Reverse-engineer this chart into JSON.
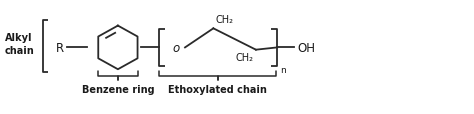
{
  "background_color": "#ffffff",
  "line_color": "#2a2a2a",
  "text_color": "#1a1a1a",
  "fig_width": 4.74,
  "fig_height": 1.15,
  "dpi": 100,
  "alkyl_label": "Alkyl\nchain",
  "benzene_label": "Benzene ring",
  "ethoxylated_label": "Ethoxylated chain",
  "ch2_top": "CH₂",
  "ch2_bottom": "CH₂",
  "o_label": "o",
  "oh_label": "OH",
  "n_label": "n",
  "r_label": "R"
}
